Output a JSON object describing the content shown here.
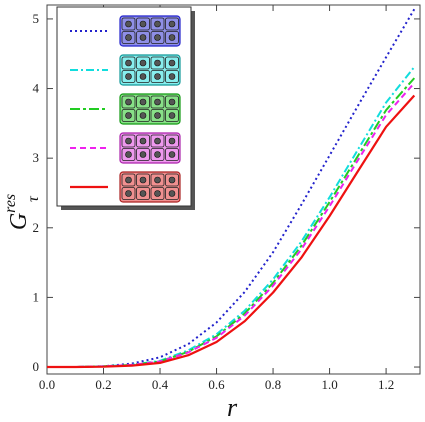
{
  "chart_data": {
    "type": "line",
    "xlabel": "r",
    "ylabel": "G",
    "ylabel_superscript": "res",
    "ylabel_subscript": "τ",
    "xlim": [
      0.0,
      1.32
    ],
    "ylim": [
      -0.1,
      5.2
    ],
    "x_ticks": [
      "0.0",
      "0.2",
      "0.4",
      "0.6",
      "0.8",
      "1.0",
      "1.2"
    ],
    "y_ticks": [
      "0",
      "1",
      "2",
      "3",
      "4",
      "5"
    ],
    "x_tick_values": [
      0.0,
      0.2,
      0.4,
      0.6,
      0.8,
      1.0,
      1.2
    ],
    "y_tick_values": [
      0,
      1,
      2,
      3,
      4,
      5
    ],
    "grid": false,
    "legend_position": "top-left",
    "x": [
      0.0,
      0.1,
      0.2,
      0.3,
      0.4,
      0.5,
      0.6,
      0.7,
      0.8,
      0.9,
      1.0,
      1.1,
      1.2,
      1.3
    ],
    "series": [
      {
        "id": "s1",
        "color": "#2222cc",
        "dash": "2,3",
        "stroke_width": 2,
        "values": [
          0,
          0,
          0.01,
          0.05,
          0.14,
          0.33,
          0.64,
          1.08,
          1.65,
          2.33,
          3.04,
          3.75,
          4.45,
          5.14
        ],
        "legend_icon": {
          "fill": "#8f8fe6",
          "border": "#2222cc",
          "rows": [
            [
              1,
              1,
              1,
              1
            ],
            [
              1,
              1,
              1,
              1
            ]
          ],
          "merged": []
        }
      },
      {
        "id": "s2",
        "color": "#11dddd",
        "dash": "8,3,2,3",
        "stroke_width": 2,
        "values": [
          0,
          0,
          0.01,
          0.03,
          0.09,
          0.24,
          0.47,
          0.81,
          1.26,
          1.8,
          2.44,
          3.12,
          3.8,
          4.31
        ],
        "legend_icon": {
          "fill": "#88eeee",
          "border": "#119999",
          "rows": [
            [
              1,
              1,
              1,
              1
            ],
            [
              1,
              1,
              1,
              1
            ]
          ],
          "merged": []
        }
      },
      {
        "id": "s3",
        "color": "#22cc22",
        "dash": "10,3,3,3",
        "stroke_width": 2,
        "values": [
          0,
          0,
          0.01,
          0.03,
          0.08,
          0.22,
          0.44,
          0.77,
          1.21,
          1.74,
          2.37,
          3.03,
          3.69,
          4.15
        ],
        "legend_icon": {
          "fill": "#88e088",
          "border": "#119911",
          "rows": [
            [
              1,
              1,
              1,
              1
            ],
            [
              1,
              1,
              1,
              1
            ]
          ],
          "merged": []
        }
      },
      {
        "id": "s4",
        "color": "#ee22ee",
        "dash": "6,4",
        "stroke_width": 2,
        "values": [
          0,
          0,
          0.01,
          0.03,
          0.08,
          0.21,
          0.42,
          0.74,
          1.17,
          1.69,
          2.31,
          2.97,
          3.62,
          4.08
        ],
        "legend_icon": {
          "fill": "#ee99ee",
          "border": "#aa22aa",
          "rows": [
            [
              1,
              1,
              1,
              1
            ],
            [
              1,
              1,
              1,
              1
            ]
          ],
          "merged": []
        }
      },
      {
        "id": "s5",
        "color": "#ee1111",
        "dash": "",
        "stroke_width": 2.2,
        "values": [
          0,
          0,
          0.005,
          0.02,
          0.06,
          0.17,
          0.36,
          0.66,
          1.07,
          1.57,
          2.17,
          2.81,
          3.45,
          3.9
        ],
        "legend_icon": {
          "fill": "#f09090",
          "border": "#aa2222",
          "rows": [
            [
              1,
              1,
              1,
              1
            ],
            [
              1,
              1,
              1,
              1
            ]
          ],
          "merged": []
        }
      }
    ]
  }
}
